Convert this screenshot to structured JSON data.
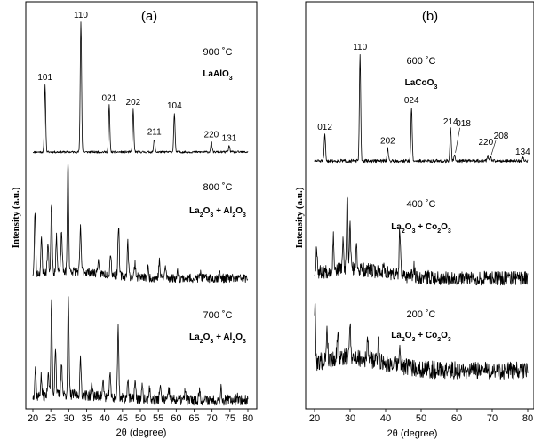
{
  "chart_data": [
    {
      "type": "line",
      "panel_label": "(a)",
      "xlabel": "2θ (degree)",
      "ylabel": "Intensity (a.u.)",
      "xlim": [
        20,
        80
      ],
      "xticks": [
        "20",
        "25",
        "30",
        "35",
        "40",
        "45",
        "50",
        "55",
        "60",
        "65",
        "70",
        "75",
        "80"
      ],
      "series": [
        {
          "name": "900 °C LaAlO3",
          "temp_label": "900 ˚C",
          "phase": [
            {
              "t": "LaAlO"
            },
            {
              "t": "3",
              "sub": true
            }
          ],
          "peaks": [
            {
              "x": 23.4,
              "h": 0.52,
              "label": "101"
            },
            {
              "x": 33.4,
              "h": 1.0,
              "label": "110"
            },
            {
              "x": 41.3,
              "h": 0.36,
              "label": "021"
            },
            {
              "x": 48.0,
              "h": 0.33,
              "label": "202"
            },
            {
              "x": 53.9,
              "h": 0.1,
              "label": "211"
            },
            {
              "x": 59.5,
              "h": 0.3,
              "label": "104"
            },
            {
              "x": 69.8,
              "h": 0.08,
              "label": "220"
            },
            {
              "x": 74.8,
              "h": 0.05,
              "label": "131"
            }
          ]
        },
        {
          "name": "800 °C La2O3 + Al2O3",
          "temp_label": "800 ˚C",
          "phase": [
            {
              "t": "La"
            },
            {
              "t": "2",
              "sub": true
            },
            {
              "t": "O"
            },
            {
              "t": "3",
              "sub": true
            },
            {
              "t": " + Al"
            },
            {
              "t": "2",
              "sub": true
            },
            {
              "t": "O"
            },
            {
              "t": "3",
              "sub": true
            }
          ],
          "peaks": [
            {
              "x": 20.6,
              "h": 0.55
            },
            {
              "x": 22.4,
              "h": 0.3
            },
            {
              "x": 24.2,
              "h": 0.25
            },
            {
              "x": 25.2,
              "h": 0.62
            },
            {
              "x": 26.6,
              "h": 0.3
            },
            {
              "x": 28.0,
              "h": 0.35
            },
            {
              "x": 29.8,
              "h": 1.0
            },
            {
              "x": 33.3,
              "h": 0.38
            },
            {
              "x": 38.2,
              "h": 0.1
            },
            {
              "x": 41.7,
              "h": 0.2
            },
            {
              "x": 43.9,
              "h": 0.45
            },
            {
              "x": 46.5,
              "h": 0.3
            },
            {
              "x": 48.5,
              "h": 0.12
            },
            {
              "x": 52.1,
              "h": 0.08
            },
            {
              "x": 55.3,
              "h": 0.15
            },
            {
              "x": 57.0,
              "h": 0.1
            },
            {
              "x": 60.5,
              "h": 0.06
            },
            {
              "x": 66.8,
              "h": 0.05
            },
            {
              "x": 72.0,
              "h": 0.06
            }
          ]
        },
        {
          "name": "700 °C La2O3 + Al2O3",
          "temp_label": "700 ˚C",
          "phase": [
            {
              "t": "La"
            },
            {
              "t": "2",
              "sub": true
            },
            {
              "t": "O"
            },
            {
              "t": "3",
              "sub": true
            },
            {
              "t": " + Al"
            },
            {
              "t": "2",
              "sub": true
            },
            {
              "t": "O"
            },
            {
              "t": "3",
              "sub": true
            }
          ],
          "peaks": [
            {
              "x": 20.7,
              "h": 0.3
            },
            {
              "x": 22.3,
              "h": 0.2
            },
            {
              "x": 24.3,
              "h": 0.25
            },
            {
              "x": 25.2,
              "h": 0.95
            },
            {
              "x": 26.3,
              "h": 0.5
            },
            {
              "x": 28.0,
              "h": 0.35
            },
            {
              "x": 29.9,
              "h": 1.0
            },
            {
              "x": 33.3,
              "h": 0.35
            },
            {
              "x": 36.5,
              "h": 0.1
            },
            {
              "x": 39.6,
              "h": 0.15
            },
            {
              "x": 41.5,
              "h": 0.25
            },
            {
              "x": 43.8,
              "h": 0.72
            },
            {
              "x": 46.5,
              "h": 0.22
            },
            {
              "x": 48.5,
              "h": 0.18
            },
            {
              "x": 50.5,
              "h": 0.12
            },
            {
              "x": 52.5,
              "h": 0.12
            },
            {
              "x": 55.5,
              "h": 0.15
            },
            {
              "x": 58.0,
              "h": 0.1
            },
            {
              "x": 62.5,
              "h": 0.08
            },
            {
              "x": 66.5,
              "h": 0.1
            },
            {
              "x": 72.5,
              "h": 0.12
            },
            {
              "x": 77.0,
              "h": 0.06
            }
          ]
        }
      ]
    },
    {
      "type": "line",
      "panel_label": "(b)",
      "xlabel": "2θ (degree)",
      "ylabel": "Intensity (a.u.)",
      "xlim": [
        20,
        80
      ],
      "xticks": [
        "20",
        "30",
        "40",
        "50",
        "60",
        "70",
        "80"
      ],
      "series": [
        {
          "name": "600 °C LaCoO3",
          "temp_label": "600 ˚C",
          "phase": [
            {
              "t": "LaCoO"
            },
            {
              "t": "3",
              "sub": true
            }
          ],
          "peaks": [
            {
              "x": 22.9,
              "h": 0.25,
              "label": "012"
            },
            {
              "x": 32.8,
              "h": 1.0,
              "label": "110"
            },
            {
              "x": 40.6,
              "h": 0.12,
              "label": "202"
            },
            {
              "x": 47.3,
              "h": 0.5,
              "label": "024"
            },
            {
              "x": 58.3,
              "h": 0.3,
              "label": "214"
            },
            {
              "x": 59.4,
              "h": 0.06,
              "label": "018"
            },
            {
              "x": 68.7,
              "h": 0.05,
              "label": "220"
            },
            {
              "x": 69.5,
              "h": 0.04,
              "label": "208"
            },
            {
              "x": 78.6,
              "h": 0.04,
              "label": "134"
            }
          ]
        },
        {
          "name": "400 °C La2O3 + Co2O3",
          "temp_label": "400 ˚C",
          "phase": [
            {
              "t": "La"
            },
            {
              "t": "2",
              "sub": true
            },
            {
              "t": "O"
            },
            {
              "t": "3",
              "sub": true
            },
            {
              "t": " + Co"
            },
            {
              "t": "2",
              "sub": true
            },
            {
              "t": "O"
            },
            {
              "t": "3",
              "sub": true
            }
          ],
          "peaks": [
            {
              "x": 20.6,
              "h": 0.35
            },
            {
              "x": 25.3,
              "h": 0.45
            },
            {
              "x": 28.0,
              "h": 0.35
            },
            {
              "x": 29.2,
              "h": 1.0
            },
            {
              "x": 30.0,
              "h": 0.6
            },
            {
              "x": 31.8,
              "h": 0.3
            },
            {
              "x": 39.5,
              "h": 0.15
            },
            {
              "x": 44.0,
              "h": 0.6
            },
            {
              "x": 48.0,
              "h": 0.12
            }
          ]
        },
        {
          "name": "200 °C La2O3 + Co2O3",
          "temp_label": "200 ˚C",
          "phase": [
            {
              "t": "La"
            },
            {
              "t": "2",
              "sub": true
            },
            {
              "t": "O"
            },
            {
              "t": "3",
              "sub": true
            },
            {
              "t": " + Co"
            },
            {
              "t": "2",
              "sub": true
            },
            {
              "t": "O"
            },
            {
              "t": "3",
              "sub": true
            }
          ],
          "peaks": [
            {
              "x": 20.1,
              "h": 0.9
            },
            {
              "x": 23.5,
              "h": 0.5
            },
            {
              "x": 26.5,
              "h": 0.4
            },
            {
              "x": 30.0,
              "h": 0.55
            },
            {
              "x": 35.0,
              "h": 0.3
            },
            {
              "x": 38.0,
              "h": 0.35
            },
            {
              "x": 44.0,
              "h": 0.25
            }
          ]
        }
      ]
    }
  ]
}
